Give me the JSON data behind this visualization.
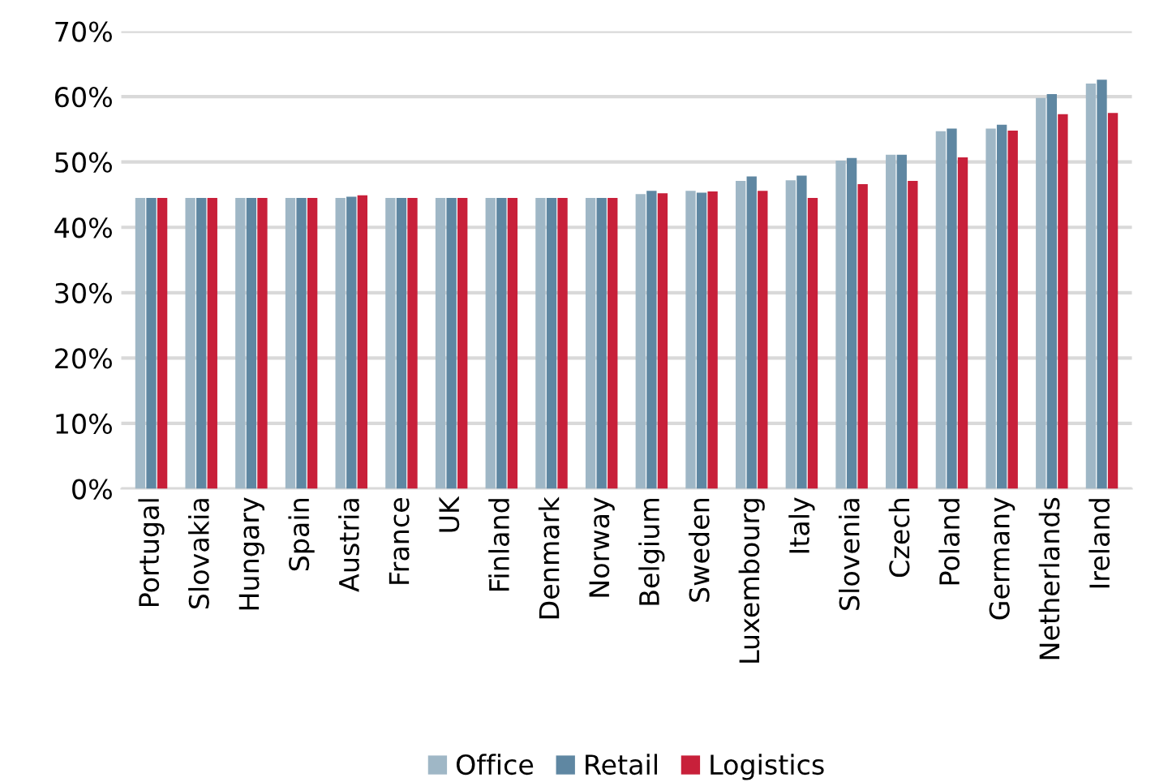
{
  "chart_data": {
    "type": "bar",
    "categories": [
      "Portugal",
      "Slovakia",
      "Hungary",
      "Spain",
      "Austria",
      "France",
      "UK",
      "Finland",
      "Denmark",
      "Norway",
      "Belgium",
      "Sweden",
      "Luxembourg",
      "Italy",
      "Slovenia",
      "Czech",
      "Poland",
      "Germany",
      "Netherlands",
      "Ireland"
    ],
    "series": [
      {
        "name": "Office",
        "color": "#9fb7c6",
        "values": [
          44.5,
          44.5,
          44.5,
          44.5,
          44.5,
          44.5,
          44.5,
          44.5,
          44.5,
          44.5,
          45.1,
          45.6,
          47.1,
          47.2,
          50.2,
          51.1,
          54.7,
          55.1,
          59.8,
          62.0
        ]
      },
      {
        "name": "Retail",
        "color": "#5f87a2",
        "values": [
          44.5,
          44.5,
          44.5,
          44.5,
          44.7,
          44.5,
          44.5,
          44.5,
          44.5,
          44.5,
          45.6,
          45.3,
          47.8,
          47.9,
          50.6,
          51.1,
          55.1,
          55.7,
          60.4,
          62.6
        ]
      },
      {
        "name": "Logistics",
        "color": "#c8203a",
        "values": [
          44.5,
          44.5,
          44.5,
          44.5,
          44.9,
          44.5,
          44.5,
          44.5,
          44.5,
          44.5,
          45.2,
          45.5,
          45.6,
          44.5,
          46.6,
          47.1,
          50.7,
          54.8,
          57.3,
          57.5
        ]
      }
    ],
    "ylim": [
      0,
      70
    ],
    "yticks": [
      {
        "value": 0,
        "label": "0%"
      },
      {
        "value": 10,
        "label": "10%"
      },
      {
        "value": 20,
        "label": "20%"
      },
      {
        "value": 30,
        "label": "30%"
      },
      {
        "value": 40,
        "label": "40%"
      },
      {
        "value": 50,
        "label": "50%"
      },
      {
        "value": 60,
        "label": "60%"
      },
      {
        "value": 70,
        "label": "70%"
      }
    ],
    "grid": "y",
    "legend": "bottom"
  }
}
